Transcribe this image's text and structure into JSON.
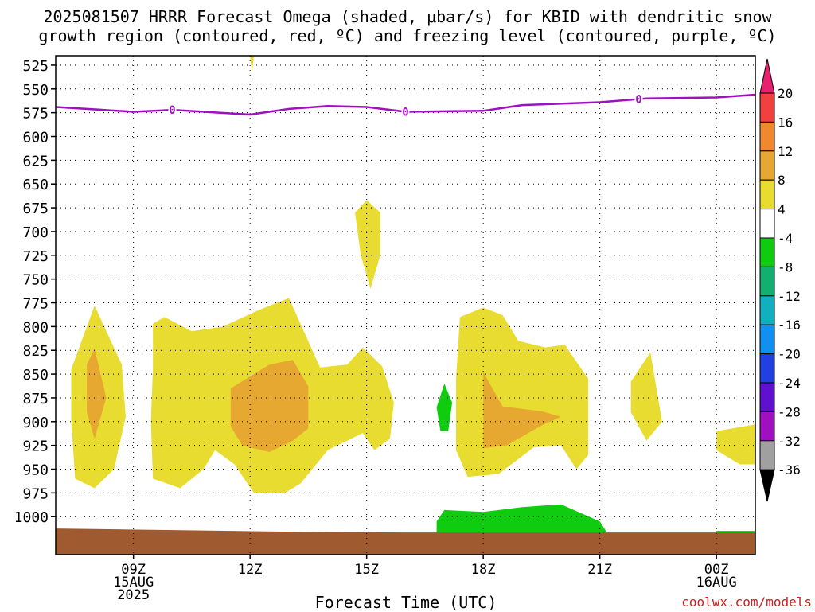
{
  "title_line1": "2025081507 HRRR Forecast Omega (shaded, μbar/s) for KBID with dendritic snow",
  "title_line2": "growth region (contoured, red, ºC) and freezing level (contoured, purple, ºC)",
  "credit": "coolwx.com/models",
  "chart_data": {
    "type": "time-height cross section",
    "xlabel": "Forecast Time (UTC)",
    "x_range_hours": [
      7,
      25
    ],
    "y_range_hPa": [
      515,
      1040
    ],
    "y_ticks": [
      525,
      550,
      575,
      600,
      625,
      650,
      675,
      700,
      725,
      750,
      775,
      800,
      825,
      850,
      875,
      900,
      925,
      950,
      975,
      1000
    ],
    "x_ticks": [
      {
        "hour": 9,
        "lines": [
          "09Z",
          "15AUG",
          "2025"
        ]
      },
      {
        "hour": 12,
        "lines": [
          "12Z"
        ]
      },
      {
        "hour": 15,
        "lines": [
          "15Z"
        ]
      },
      {
        "hour": 18,
        "lines": [
          "18Z"
        ]
      },
      {
        "hour": 21,
        "lines": [
          "21Z"
        ]
      },
      {
        "hour": 24,
        "lines": [
          "00Z",
          "16AUG"
        ]
      }
    ],
    "grid": "dotted",
    "colorbar": {
      "labels": [
        "20",
        "16",
        "12",
        "8",
        "4",
        "-4",
        "-8",
        "-12",
        "-16",
        "-20",
        "-24",
        "-28",
        "-32",
        "-36"
      ],
      "colors_top_to_bottom": [
        "#e8206e",
        "#f04040",
        "#f08830",
        "#e6a830",
        "#e8dc30",
        "#ffffff",
        "#10cc10",
        "#10b070",
        "#10b0c0",
        "#1090f0",
        "#2040e0",
        "#6010d0",
        "#a010c0",
        "#a0a0a0",
        "#000000"
      ]
    },
    "freezing_level": {
      "color": "#a010c0",
      "label": "0",
      "points": [
        [
          7,
          569
        ],
        [
          9,
          574
        ],
        [
          10,
          572
        ],
        [
          12,
          577
        ],
        [
          13,
          571
        ],
        [
          14,
          568
        ],
        [
          15,
          569
        ],
        [
          16,
          574
        ],
        [
          18,
          573
        ],
        [
          19,
          567
        ],
        [
          21,
          564
        ],
        [
          22.2,
          560
        ],
        [
          24,
          559
        ],
        [
          25,
          556
        ]
      ],
      "label_hours": [
        10,
        16,
        22
      ]
    },
    "omega_regions": [
      {
        "level": 4,
        "color": "#e8dc30",
        "points": [
          [
            12,
            515
          ],
          [
            12.05,
            533
          ],
          [
            12.1,
            515
          ]
        ]
      },
      {
        "level": 4,
        "color": "#e8dc30",
        "points": [
          [
            14.7,
            680
          ],
          [
            15,
            667
          ],
          [
            15.35,
            680
          ],
          [
            15.35,
            725
          ],
          [
            15.1,
            760
          ],
          [
            14.85,
            725
          ]
        ]
      },
      {
        "level": 4,
        "color": "#e8dc30",
        "points": [
          [
            8,
            778
          ],
          [
            8.7,
            840
          ],
          [
            8.8,
            895
          ],
          [
            8.5,
            950
          ],
          [
            8,
            970
          ],
          [
            7.5,
            960
          ],
          [
            7.4,
            900
          ],
          [
            7.4,
            845
          ]
        ]
      },
      {
        "level": 4,
        "color": "#e8dc30",
        "points": [
          [
            9.5,
            797
          ],
          [
            9.8,
            790
          ],
          [
            10.5,
            805
          ],
          [
            11.3,
            800
          ],
          [
            12.2,
            783
          ],
          [
            13,
            770
          ],
          [
            13.8,
            843
          ],
          [
            14.5,
            840
          ],
          [
            14.9,
            822
          ],
          [
            15.4,
            842
          ],
          [
            15.7,
            880
          ],
          [
            15.6,
            918
          ],
          [
            15.2,
            930
          ],
          [
            14.9,
            912
          ],
          [
            14,
            930
          ],
          [
            13.3,
            965
          ],
          [
            12.9,
            975
          ],
          [
            12.1,
            975
          ],
          [
            11.6,
            945
          ],
          [
            11.1,
            930
          ],
          [
            10.8,
            950
          ],
          [
            10.2,
            970
          ],
          [
            9.5,
            960
          ],
          [
            9.45,
            900
          ],
          [
            9.5,
            845
          ]
        ]
      },
      {
        "level": 4,
        "color": "#e8dc30",
        "points": [
          [
            17.4,
            790
          ],
          [
            18,
            780
          ],
          [
            18.5,
            788
          ],
          [
            18.9,
            815
          ],
          [
            19.6,
            822
          ],
          [
            20.1,
            819
          ],
          [
            20.7,
            855
          ],
          [
            20.7,
            935
          ],
          [
            20.4,
            950
          ],
          [
            20,
            925
          ],
          [
            19.3,
            927
          ],
          [
            18.4,
            955
          ],
          [
            17.6,
            958
          ],
          [
            17.3,
            930
          ],
          [
            17.3,
            855
          ]
        ]
      },
      {
        "level": 4,
        "color": "#e8dc30",
        "points": [
          [
            21.8,
            858
          ],
          [
            22.3,
            827
          ],
          [
            22.6,
            900
          ],
          [
            22.2,
            920
          ],
          [
            21.8,
            890
          ]
        ]
      },
      {
        "level": 4,
        "color": "#e8dc30",
        "points": [
          [
            24,
            910
          ],
          [
            25,
            903
          ],
          [
            25,
            945
          ],
          [
            24.6,
            945
          ],
          [
            24,
            930
          ]
        ]
      },
      {
        "level": 8,
        "color": "#e6a830",
        "points": [
          [
            7.8,
            840
          ],
          [
            8,
            823
          ],
          [
            8.3,
            875
          ],
          [
            8,
            918
          ],
          [
            7.8,
            890
          ]
        ]
      },
      {
        "level": 8,
        "color": "#e6a830",
        "points": [
          [
            11.5,
            865
          ],
          [
            12.5,
            840
          ],
          [
            13.1,
            835
          ],
          [
            13.5,
            863
          ],
          [
            13.5,
            907
          ],
          [
            13.1,
            920
          ],
          [
            12.5,
            932
          ],
          [
            11.8,
            925
          ],
          [
            11.5,
            905
          ]
        ]
      },
      {
        "level": 8,
        "color": "#e6a830",
        "points": [
          [
            18,
            848
          ],
          [
            18.5,
            884
          ],
          [
            19.5,
            889
          ],
          [
            20,
            895
          ],
          [
            19.5,
            904
          ],
          [
            18.6,
            925
          ],
          [
            18,
            928
          ]
        ]
      },
      {
        "level": -4,
        "color": "#10cc10",
        "points": [
          [
            16.8,
            885
          ],
          [
            17,
            860
          ],
          [
            17.2,
            880
          ],
          [
            17.1,
            910
          ],
          [
            16.9,
            910
          ]
        ]
      },
      {
        "level": -4,
        "color": "#10cc10",
        "points": [
          [
            16.8,
            1005
          ],
          [
            17,
            993
          ],
          [
            18,
            995
          ],
          [
            19,
            990
          ],
          [
            20,
            987
          ],
          [
            21,
            1005
          ],
          [
            21.2,
            1018
          ],
          [
            16.8,
            1018
          ]
        ]
      },
      {
        "level": -4,
        "color": "#10cc10",
        "points": [
          [
            24,
            1015
          ],
          [
            25,
            1015
          ],
          [
            25,
            1020
          ],
          [
            24,
            1020
          ]
        ]
      }
    ],
    "terrain": {
      "color": "#a05a30",
      "top_hPa": 1015
    }
  }
}
